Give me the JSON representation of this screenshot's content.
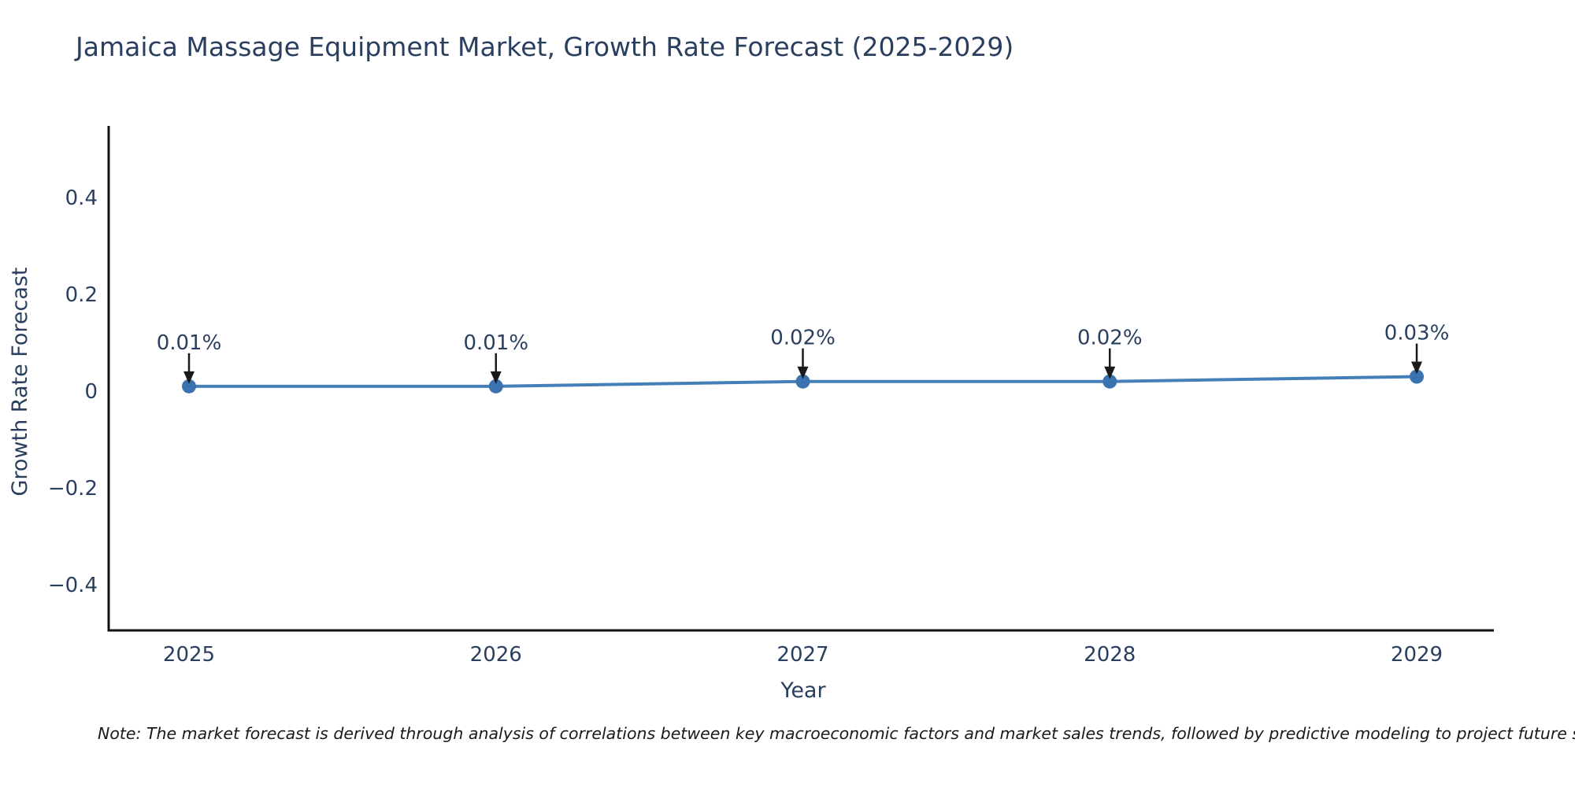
{
  "page": {
    "background": "#ffffff"
  },
  "chart_data": {
    "type": "line",
    "title": "Jamaica Massage Equipment Market, Growth Rate Forecast (2025-2029)",
    "xlabel": "Year",
    "ylabel": "Growth Rate Forecast",
    "x": [
      "2025",
      "2026",
      "2027",
      "2028",
      "2029"
    ],
    "series": [
      {
        "name": "Growth Rate Forecast",
        "values": [
          0.01,
          0.01,
          0.02,
          0.02,
          0.03
        ]
      }
    ],
    "point_labels": [
      "0.01%",
      "0.01%",
      "0.02%",
      "0.02%",
      "0.03%"
    ],
    "y_ticks": [
      0.4,
      0.2,
      0,
      -0.2,
      -0.4
    ],
    "y_tick_labels": [
      "0.4",
      "0.2",
      "0",
      "−0.2",
      "−0.4"
    ],
    "ylim": [
      -0.49,
      0.55
    ],
    "grid": false,
    "legend": "none",
    "line_color": "#4480b7",
    "marker_color": "#3a73b0",
    "axis_color": "#111111",
    "text_color": "#2a3f5f",
    "arrow_color": "#1a1a1a"
  },
  "footnote": {
    "text": "Note: The market forecast is derived through analysis of correlations between key macroeconomic factors and market sales trends, followed by predictive modeling to project future sal"
  }
}
